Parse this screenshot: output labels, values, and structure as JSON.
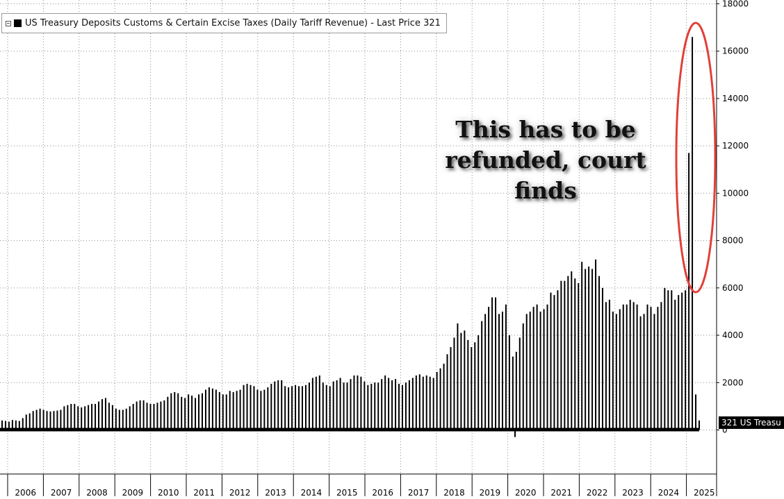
{
  "legend": {
    "toggle_icon": "expand-box-icon",
    "swatch_color": "#000000",
    "text": "US Treasury Deposits Customs & Certain Excise Taxes (Daily Tariff Revenue) - Last Price 321"
  },
  "annotation": {
    "line1": "This has to be",
    "line2": "refunded, court finds",
    "ellipse_color": "#e0403a"
  },
  "last_price_tag": {
    "label": "321 US Treasu",
    "value": 321
  },
  "chart_data": {
    "type": "bar",
    "title": "",
    "xlabel": "",
    "ylabel": "",
    "ylim": [
      -1800,
      18000
    ],
    "yticks": [
      0,
      2000,
      4000,
      6000,
      8000,
      10000,
      12000,
      14000,
      16000,
      18000
    ],
    "grid": true,
    "legend_placement": "top-left",
    "year_labels": [
      "2006",
      "2007",
      "2008",
      "2009",
      "2010",
      "2011",
      "2012",
      "2013",
      "2014",
      "2015",
      "2016",
      "2017",
      "2018",
      "2019",
      "2020",
      "2021",
      "2022",
      "2023",
      "2024",
      "2025"
    ],
    "series": [
      {
        "color": "#000000",
        "values_description_units": "daily deposits, monthly peak values",
        "x_start": "2005-09",
        "values": [
          400,
          380,
          350,
          420,
          400,
          380,
          500,
          650,
          700,
          800,
          850,
          900,
          850,
          800,
          780,
          800,
          820,
          850,
          1000,
          1050,
          1100,
          1100,
          1000,
          950,
          1000,
          1050,
          1100,
          1100,
          1200,
          1300,
          1350,
          1150,
          1050,
          900,
          850,
          850,
          900,
          1000,
          1100,
          1200,
          1250,
          1250,
          1150,
          1100,
          1100,
          1150,
          1200,
          1250,
          1400,
          1550,
          1600,
          1550,
          1400,
          1350,
          1500,
          1450,
          1350,
          1500,
          1550,
          1700,
          1800,
          1750,
          1700,
          1600,
          1500,
          1500,
          1650,
          1600,
          1650,
          1700,
          1900,
          1950,
          1900,
          1850,
          1700,
          1650,
          1700,
          1800,
          1950,
          2050,
          2100,
          2100,
          1850,
          1800,
          1850,
          1900,
          1850,
          1850,
          1900,
          2000,
          2200,
          2250,
          2300,
          2000,
          1900,
          1850,
          2050,
          2100,
          2200,
          2000,
          2000,
          2150,
          2300,
          2300,
          2250,
          2050,
          1900,
          1950,
          2000,
          2000,
          2150,
          2300,
          2200,
          2100,
          2150,
          1950,
          1900,
          2000,
          2100,
          2200,
          2300,
          2350,
          2250,
          2300,
          2250,
          2200,
          2450,
          2600,
          2800,
          3200,
          3500,
          3900,
          4500,
          4100,
          4200,
          3800,
          3500,
          3700,
          4000,
          4600,
          4900,
          5200,
          5600,
          5600,
          4900,
          5000,
          5300,
          4000,
          3100,
          3300,
          3900,
          4500,
          4900,
          5000,
          5200,
          5300,
          5000,
          5100,
          5300,
          5800,
          5700,
          5900,
          6300,
          6300,
          6500,
          6700,
          6400,
          6200,
          7100,
          6800,
          6900,
          6800,
          7200,
          6500,
          6000,
          5400,
          5500,
          5000,
          4900,
          5100,
          5300,
          5300,
          5500,
          5400,
          5300,
          4800,
          4900,
          5300,
          5200,
          4900,
          5200,
          5400,
          6000,
          5900,
          5900,
          5500,
          5700,
          5800,
          5900,
          11700,
          16600,
          1500,
          400
        ]
      }
    ]
  },
  "axis_colors": {
    "grid": "#8a8a8a",
    "axis": "#000000",
    "tick_text": "#000000"
  }
}
